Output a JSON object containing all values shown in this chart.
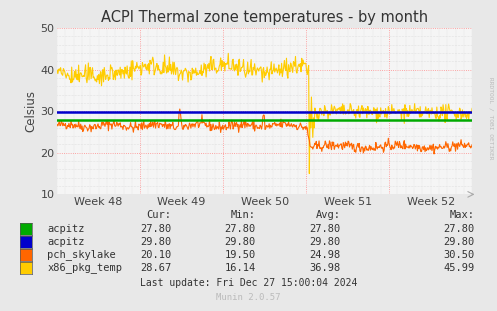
{
  "title": "ACPI Thermal zone temperatures - by month",
  "ylabel": "Celsius",
  "ylim": [
    10,
    50
  ],
  "yticks": [
    10,
    20,
    30,
    40,
    50
  ],
  "week_labels": [
    "Week 48",
    "Week 49",
    "Week 50",
    "Week 51",
    "Week 52"
  ],
  "bg_color": "#e8e8e8",
  "plot_bg_color": "#f5f5f5",
  "acpitz_green_value": 27.8,
  "acpitz_blue_value": 29.8,
  "series_colors": {
    "acpitz_green": "#00aa00",
    "acpitz_blue": "#0000cc",
    "pch_skylake": "#ff6600",
    "x86_pkg_temp": "#ffcc00"
  },
  "legend": [
    {
      "label": "acpitz",
      "color": "#00aa00",
      "cur": "27.80",
      "min": "27.80",
      "avg": "27.80",
      "max": "27.80"
    },
    {
      "label": "acpitz",
      "color": "#0000cc",
      "cur": "29.80",
      "min": "29.80",
      "avg": "29.80",
      "max": "29.80"
    },
    {
      "label": "pch_skylake",
      "color": "#ff6600",
      "cur": "20.10",
      "min": "19.50",
      "avg": "24.98",
      "max": "30.50"
    },
    {
      "label": "x86_pkg_temp",
      "color": "#ffcc00",
      "cur": "28.67",
      "min": "16.14",
      "avg": "36.98",
      "max": "45.99"
    }
  ],
  "footer": "Last update: Fri Dec 27 15:00:04 2024",
  "munin_label": "Munin 2.0.57",
  "rrdtool_label": "RRDTOOL / TOBI OETIKER",
  "grid_red": "#ff8888",
  "grid_minor": "#d0d0d0"
}
